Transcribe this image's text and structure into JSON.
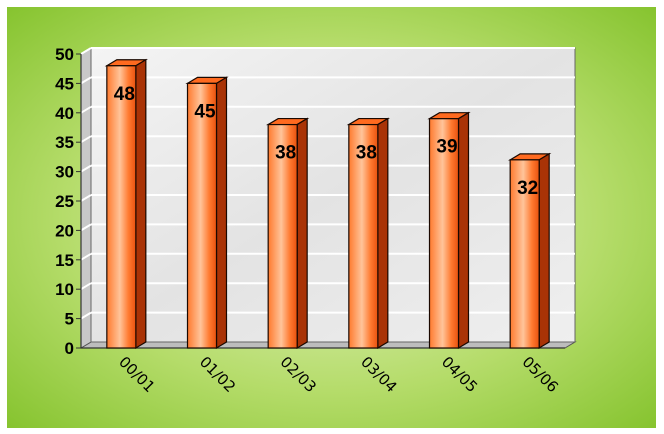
{
  "chart_data": {
    "type": "bar",
    "categories": [
      "00/01",
      "01/02",
      "02/03",
      "03/04",
      "04/05",
      "05/06"
    ],
    "values": [
      48,
      45,
      38,
      38,
      39,
      32
    ],
    "data_labels": [
      "48",
      "45",
      "38",
      "38",
      "39",
      "32"
    ],
    "y_ticks": [
      "0",
      "5",
      "10",
      "15",
      "20",
      "25",
      "30",
      "35",
      "40",
      "45",
      "50"
    ],
    "title": "",
    "xlabel": "",
    "ylabel": "",
    "ylim": [
      0,
      50
    ],
    "grid": true,
    "legend": "none",
    "colors": {
      "frame_background": "#8cc63f",
      "bar_front": "#ff6a1f",
      "bar_highlight": "#ffc49a",
      "bar_dark": "#a93306",
      "bar_outline": "#1a0800",
      "plot_background": "#e9e9e9",
      "gridline": "#ffffff"
    }
  }
}
